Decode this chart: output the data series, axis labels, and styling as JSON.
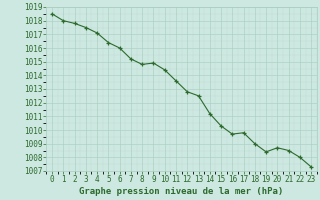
{
  "x": [
    0,
    1,
    2,
    3,
    4,
    5,
    6,
    7,
    8,
    9,
    10,
    11,
    12,
    13,
    14,
    15,
    16,
    17,
    18,
    19,
    20,
    21,
    22,
    23
  ],
  "y": [
    1018.5,
    1018.0,
    1017.8,
    1017.5,
    1017.1,
    1016.4,
    1016.0,
    1015.2,
    1014.8,
    1014.9,
    1014.4,
    1013.6,
    1012.8,
    1012.5,
    1011.2,
    1010.3,
    1009.7,
    1009.8,
    1009.0,
    1008.4,
    1008.7,
    1008.5,
    1008.0,
    1007.3
  ],
  "line_color": "#2d6a2d",
  "marker_color": "#2d6a2d",
  "bg_color": "#cce8e0",
  "grid_color_major": "#aaccbf",
  "xlabel": "Graphe pression niveau de la mer (hPa)",
  "ylim": [
    1007,
    1019
  ],
  "xlim": [
    -0.5,
    23.5
  ],
  "yticks": [
    1007,
    1008,
    1009,
    1010,
    1011,
    1012,
    1013,
    1014,
    1015,
    1016,
    1017,
    1018,
    1019
  ],
  "xticks": [
    0,
    1,
    2,
    3,
    4,
    5,
    6,
    7,
    8,
    9,
    10,
    11,
    12,
    13,
    14,
    15,
    16,
    17,
    18,
    19,
    20,
    21,
    22,
    23
  ],
  "xlabel_fontsize": 6.5,
  "tick_fontsize": 5.5,
  "text_color": "#2d6a2d"
}
